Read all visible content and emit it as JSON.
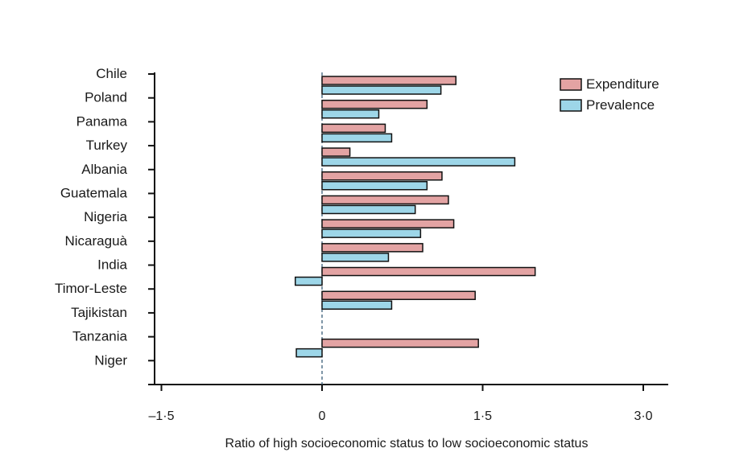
{
  "chart_data": {
    "type": "bar",
    "orientation": "horizontal",
    "title": "",
    "xlabel": "Ratio of high socioeconomic status to low socioeconomic status",
    "ylabel": "",
    "xlim": [
      -1.5,
      3.25
    ],
    "xticks": [
      -1.5,
      0,
      1.5,
      3.0
    ],
    "xtick_labels": [
      "–1·5",
      "0",
      "1·5",
      "3·0"
    ],
    "reference_line": 0,
    "categories": [
      "Chile",
      "Poland",
      "Panama",
      "Turkey",
      "Albania",
      "Guatemala",
      "Nigeria",
      "Nicaraguà",
      "India",
      "Timor-Leste",
      "Tajikistan",
      "Tanzania",
      "Niger"
    ],
    "series": [
      {
        "name": "Expenditure",
        "color": "#e3a3a3",
        "values": [
          1.25,
          0.98,
          0.59,
          0.26,
          1.12,
          1.18,
          1.23,
          0.94,
          1.99,
          1.43,
          null,
          1.46,
          null
        ]
      },
      {
        "name": "Prevalence",
        "color": "#9dd6e8",
        "values": [
          1.11,
          0.53,
          0.65,
          1.8,
          0.98,
          0.87,
          0.92,
          0.62,
          -0.25,
          0.65,
          null,
          -0.24,
          null
        ]
      }
    ],
    "legend": "top-right",
    "grid": false
  }
}
